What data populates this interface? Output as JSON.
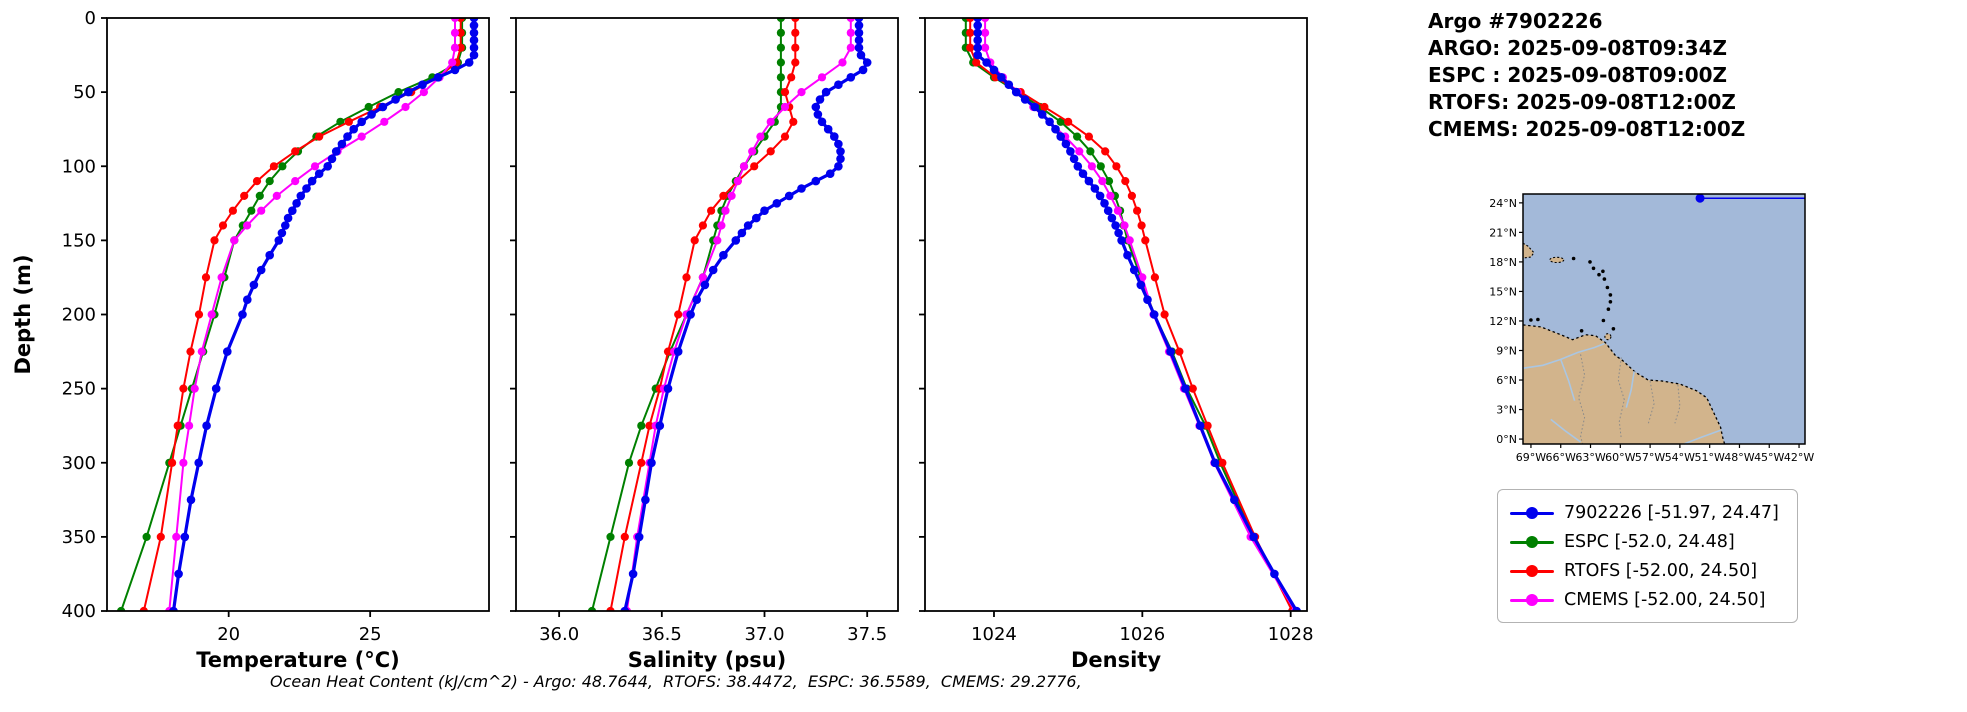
{
  "header": {
    "lines": [
      "Argo #7902226",
      "ARGO: 2025-09-08T09:34Z",
      "ESPC : 2025-09-08T09:00Z",
      "RTOFS: 2025-09-08T12:00Z",
      "CMEMS: 2025-09-08T12:00Z"
    ]
  },
  "annotation": {
    "text": "Ocean Heat Content (kJ/cm^2) - Argo: 48.7644,  RTOFS: 38.4472,  ESPC: 36.5589,  CMEMS: 29.2776,"
  },
  "legend": {
    "items": [
      {
        "id": "argo",
        "label": "7902226 [-51.97, 24.47]",
        "color": "#0000ee"
      },
      {
        "id": "espc",
        "label": "ESPC [-52.0, 24.48]",
        "color": "#008000"
      },
      {
        "id": "rtofs",
        "label": "RTOFS [-52.00, 24.50]",
        "color": "#ff0000"
      },
      {
        "id": "cmems",
        "label": "CMEMS [-52.00, 24.50]",
        "color": "#ff00ff"
      }
    ]
  },
  "map": {
    "ocean_color": "#a3b9d9",
    "land_color": "#d2b48c",
    "river_color": "#aac6e2",
    "float_color": "#0000ee",
    "float_lon_w": 51.97,
    "float_lat_n": 24.47,
    "lat_tick_values": [
      24,
      21,
      18,
      15,
      12,
      9,
      6,
      3,
      0
    ],
    "lat_tick_labels": [
      "24°N",
      "21°N",
      "18°N",
      "15°N",
      "12°N",
      "9°N",
      "6°N",
      "3°N",
      "0°N"
    ],
    "lon_tick_values": [
      69,
      66,
      63,
      60,
      57,
      54,
      51,
      48,
      45,
      42
    ],
    "lon_tick_labels": [
      "69°W",
      "66°W",
      "63°W",
      "60°W",
      "57°W",
      "54°W",
      "51°W",
      "48°W",
      "45°W",
      "42°W"
    ]
  },
  "chart_data": {
    "type": "line",
    "orientation": "vertical-profile",
    "ylabel": "Depth (m)",
    "ylim": [
      0,
      400
    ],
    "yticks": [
      0,
      50,
      100,
      150,
      200,
      250,
      300,
      350,
      400
    ],
    "grid": false,
    "series_meta": [
      {
        "id": "argo",
        "name": "7902226",
        "color": "#0000ee"
      },
      {
        "id": "espc",
        "name": "ESPC",
        "color": "#008000"
      },
      {
        "id": "rtofs",
        "name": "RTOFS",
        "color": "#ff0000"
      },
      {
        "id": "cmems",
        "name": "CMEMS",
        "color": "#ff00ff"
      }
    ],
    "depths": {
      "argo": [
        0,
        5,
        10,
        15,
        20,
        25,
        30,
        35,
        40,
        45,
        50,
        55,
        60,
        65,
        70,
        75,
        80,
        85,
        90,
        95,
        100,
        105,
        110,
        115,
        120,
        125,
        130,
        135,
        140,
        145,
        150,
        160,
        170,
        180,
        190,
        200,
        225,
        250,
        275,
        300,
        325,
        350,
        375,
        400
      ],
      "model": [
        0,
        10,
        20,
        30,
        40,
        50,
        60,
        70,
        80,
        90,
        100,
        110,
        120,
        130,
        140,
        150,
        175,
        200,
        225,
        250,
        275,
        300,
        350,
        400
      ]
    },
    "panels": [
      {
        "panel_name": "temperature-panel",
        "xlabel": "Temperature (°C)",
        "xlim": [
          15.7,
          29.2
        ],
        "xticks": [
          20,
          25
        ],
        "xtick_labels": [
          "20",
          "25"
        ],
        "values": {
          "argo": [
            28.67,
            28.67,
            28.67,
            28.67,
            28.67,
            28.67,
            28.5,
            28.0,
            27.4,
            26.85,
            26.35,
            25.9,
            25.45,
            25.05,
            24.7,
            24.42,
            24.2,
            24.0,
            23.8,
            23.65,
            23.5,
            23.2,
            22.95,
            22.75,
            22.55,
            22.4,
            22.25,
            22.1,
            22.0,
            21.88,
            21.77,
            21.45,
            21.15,
            20.89,
            20.66,
            20.49,
            19.95,
            19.56,
            19.22,
            18.94,
            18.67,
            18.45,
            18.23,
            18.05
          ],
          "espc": [
            28.25,
            28.25,
            28.25,
            28.1,
            27.2,
            26.0,
            24.95,
            23.95,
            23.1,
            22.45,
            21.9,
            21.45,
            21.1,
            20.8,
            20.5,
            20.2,
            19.85,
            19.5,
            19.1,
            18.7,
            18.3,
            17.9,
            17.1,
            16.2
          ],
          "rtofs": [
            28.2,
            28.2,
            28.2,
            28.05,
            27.4,
            26.45,
            25.35,
            24.25,
            23.2,
            22.35,
            21.6,
            21.0,
            20.55,
            20.15,
            19.8,
            19.5,
            19.2,
            18.95,
            18.65,
            18.4,
            18.2,
            18.0,
            17.6,
            17.0
          ],
          "cmems": [
            28.0,
            28.0,
            28.0,
            27.9,
            27.45,
            26.9,
            26.25,
            25.5,
            24.7,
            23.85,
            23.05,
            22.35,
            21.7,
            21.15,
            20.65,
            20.2,
            19.75,
            19.4,
            19.05,
            18.8,
            18.6,
            18.4,
            18.15,
            17.9
          ]
        }
      },
      {
        "panel_name": "salinity-panel",
        "xlabel": "Salinity (psu)",
        "xlim": [
          35.79,
          37.65
        ],
        "xticks": [
          36.0,
          36.5,
          37.0,
          37.5
        ],
        "xtick_labels": [
          "36.0",
          "36.5",
          "37.0",
          "37.5"
        ],
        "values": {
          "argo": [
            37.46,
            37.46,
            37.46,
            37.46,
            37.46,
            37.47,
            37.5,
            37.48,
            37.42,
            37.36,
            37.3,
            37.27,
            37.25,
            37.26,
            37.28,
            37.31,
            37.34,
            37.36,
            37.37,
            37.37,
            37.36,
            37.32,
            37.25,
            37.18,
            37.12,
            37.06,
            37.0,
            36.96,
            36.92,
            36.89,
            36.86,
            36.8,
            36.75,
            36.71,
            36.67,
            36.64,
            36.58,
            36.53,
            36.49,
            36.45,
            36.42,
            36.39,
            36.36,
            36.32
          ],
          "espc": [
            37.08,
            37.08,
            37.08,
            37.08,
            37.08,
            37.08,
            37.08,
            37.05,
            37.0,
            36.95,
            36.9,
            36.86,
            36.82,
            36.79,
            36.77,
            36.75,
            36.7,
            36.62,
            36.54,
            36.47,
            36.4,
            36.34,
            36.25,
            36.16
          ],
          "rtofs": [
            37.15,
            37.15,
            37.15,
            37.15,
            37.13,
            37.1,
            37.12,
            37.14,
            37.1,
            37.03,
            36.95,
            36.87,
            36.8,
            36.74,
            36.7,
            36.66,
            36.62,
            36.58,
            36.53,
            36.49,
            36.44,
            36.4,
            36.32,
            36.25
          ],
          "cmems": [
            37.42,
            37.42,
            37.42,
            37.38,
            37.28,
            37.18,
            37.1,
            37.03,
            36.98,
            36.94,
            36.9,
            36.87,
            36.84,
            36.81,
            36.79,
            36.77,
            36.7,
            36.62,
            36.56,
            36.51,
            36.47,
            36.44,
            36.38,
            36.33
          ]
        }
      },
      {
        "panel_name": "density-panel",
        "xlabel": "Density",
        "xlim": [
          1023.07,
          1028.22
        ],
        "xticks": [
          1024,
          1026,
          1028
        ],
        "xtick_labels": [
          "1024",
          "1026",
          "1028"
        ],
        "values": {
          "argo": [
            1023.78,
            1023.78,
            1023.78,
            1023.78,
            1023.78,
            1023.78,
            1023.9,
            1024.0,
            1024.1,
            1024.2,
            1024.3,
            1024.42,
            1024.55,
            1024.65,
            1024.75,
            1024.83,
            1024.9,
            1024.97,
            1025.03,
            1025.08,
            1025.13,
            1025.2,
            1025.28,
            1025.36,
            1025.43,
            1025.49,
            1025.54,
            1025.59,
            1025.64,
            1025.68,
            1025.72,
            1025.8,
            1025.89,
            1025.98,
            1026.07,
            1026.16,
            1026.38,
            1026.58,
            1026.78,
            1026.98,
            1027.24,
            1027.5,
            1027.78,
            1028.08
          ],
          "espc": [
            1023.62,
            1023.62,
            1023.62,
            1023.72,
            1024.0,
            1024.32,
            1024.62,
            1024.9,
            1025.12,
            1025.3,
            1025.44,
            1025.55,
            1025.63,
            1025.7,
            1025.75,
            1025.8,
            1025.98,
            1026.16,
            1026.4,
            1026.6,
            1026.85,
            1027.05,
            1027.5,
            1028.05
          ],
          "rtofs": [
            1023.68,
            1023.68,
            1023.68,
            1023.76,
            1024.02,
            1024.36,
            1024.68,
            1025.0,
            1025.28,
            1025.5,
            1025.65,
            1025.77,
            1025.86,
            1025.93,
            1025.99,
            1026.04,
            1026.17,
            1026.3,
            1026.5,
            1026.68,
            1026.88,
            1027.08,
            1027.52,
            1028.02
          ],
          "cmems": [
            1023.88,
            1023.88,
            1023.88,
            1023.95,
            1024.12,
            1024.32,
            1024.53,
            1024.75,
            1024.96,
            1025.15,
            1025.32,
            1025.46,
            1025.57,
            1025.67,
            1025.76,
            1025.83,
            1026.0,
            1026.15,
            1026.36,
            1026.56,
            1026.77,
            1026.97,
            1027.46,
            1028.06
          ]
        }
      }
    ]
  }
}
